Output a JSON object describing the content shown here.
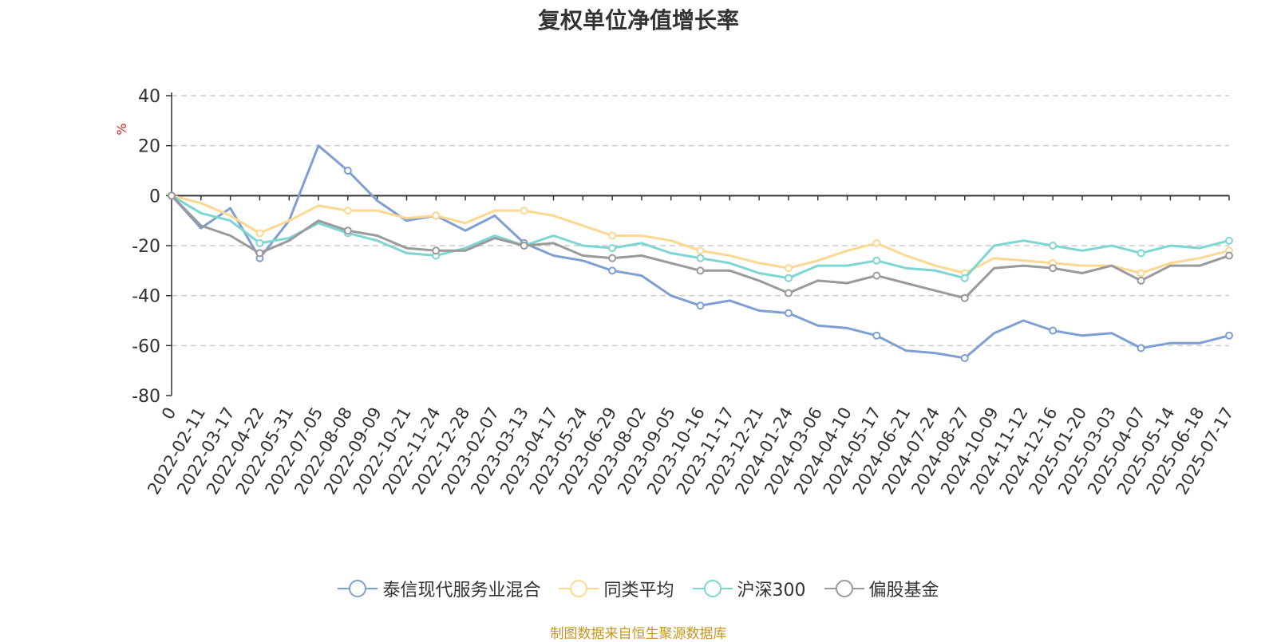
{
  "title": "复权单位净值增长率",
  "source_note": "制图数据来自恒生聚源数据库",
  "chart_data": {
    "type": "line",
    "title": "复权单位净值增长率",
    "ylabel": "%",
    "ylim": [
      -80,
      40
    ],
    "yticks": [
      40,
      20,
      0,
      -20,
      -40,
      -60,
      -80
    ],
    "grid": true,
    "legend_position": "bottom",
    "x": [
      "0",
      "2022-02-11",
      "2022-03-17",
      "2022-04-22",
      "2022-05-31",
      "2022-07-05",
      "2022-08-08",
      "2022-09-09",
      "2022-10-21",
      "2022-11-24",
      "2022-12-28",
      "2023-02-07",
      "2023-03-13",
      "2023-04-17",
      "2023-05-24",
      "2023-06-29",
      "2023-08-02",
      "2023-09-05",
      "2023-10-16",
      "2023-11-17",
      "2023-12-21",
      "2024-01-24",
      "2024-03-06",
      "2024-04-10",
      "2024-05-17",
      "2024-06-21",
      "2024-07-24",
      "2024-08-27",
      "2024-10-09",
      "2024-11-12",
      "2024-12-16",
      "2025-01-20",
      "2025-03-03",
      "2025-04-07",
      "2025-05-14",
      "2025-06-18",
      "2025-07-17"
    ],
    "series": [
      {
        "name": "泰信现代服务业混合",
        "color": "#7f9fd2",
        "values": [
          0,
          -13,
          -5,
          -25,
          -10,
          20,
          10,
          -2,
          -10,
          -8,
          -14,
          -8,
          -19,
          -24,
          -26,
          -30,
          -32,
          -40,
          -44,
          -42,
          -46,
          -47,
          -52,
          -53,
          -56,
          -62,
          -63,
          -65,
          -55,
          -50,
          -54,
          -56,
          -55,
          -61,
          -59,
          -59,
          -56
        ]
      },
      {
        "name": "同类平均",
        "color": "#fcd890",
        "values": [
          0,
          -3,
          -8,
          -15,
          -10,
          -4,
          -6,
          -6,
          -9,
          -8,
          -11,
          -6,
          -6,
          -8,
          -12,
          -16,
          -16,
          -18,
          -22,
          -24,
          -27,
          -29,
          -26,
          -22,
          -19,
          -24,
          -28,
          -31,
          -25,
          -26,
          -27,
          -28,
          -28,
          -31,
          -27,
          -25,
          -22
        ]
      },
      {
        "name": "沪深300",
        "color": "#7ed6d3",
        "values": [
          0,
          -7,
          -10,
          -19,
          -17,
          -11,
          -15,
          -18,
          -23,
          -24,
          -21,
          -16,
          -20,
          -16,
          -20,
          -21,
          -19,
          -23,
          -25,
          -27,
          -31,
          -33,
          -28,
          -28,
          -26,
          -29,
          -30,
          -33,
          -20,
          -18,
          -20,
          -22,
          -20,
          -23,
          -20,
          -21,
          -18
        ]
      },
      {
        "name": "偏股基金",
        "color": "#9a9a9a",
        "values": [
          0,
          -12,
          -16,
          -23,
          -18,
          -10,
          -14,
          -16,
          -21,
          -22,
          -22,
          -17,
          -20,
          -19,
          -24,
          -25,
          -24,
          -27,
          -30,
          -30,
          -34,
          -39,
          -34,
          -35,
          -32,
          -35,
          -38,
          -41,
          -29,
          -28,
          -29,
          -31,
          -28,
          -34,
          -28,
          -28,
          -24
        ]
      }
    ]
  }
}
